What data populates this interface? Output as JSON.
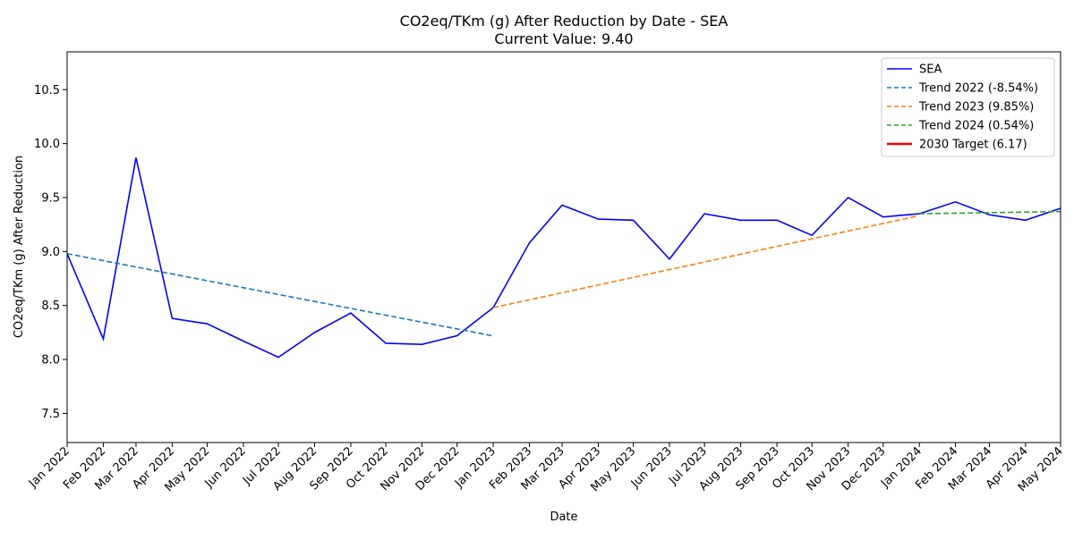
{
  "chart_data": {
    "type": "line",
    "title": "CO2eq/TKm (g) After Reduction by Date - SEA",
    "subtitle": "Current Value: 9.40",
    "xlabel": "Date",
    "ylabel": "CO2eq/TKm (g) After Reduction",
    "ylim": [
      7.23,
      10.85
    ],
    "y_ticks": [
      7.5,
      8.0,
      8.5,
      9.0,
      9.5,
      10.0,
      10.5
    ],
    "y_tick_labels": [
      "7.5",
      "8.0",
      "8.5",
      "9.0",
      "9.5",
      "10.0",
      "10.5"
    ],
    "x_ticks": [
      "2022-01-01",
      "2022-02-01",
      "2022-03-01",
      "2022-04-01",
      "2022-05-01",
      "2022-06-01",
      "2022-07-01",
      "2022-08-01",
      "2022-09-01",
      "2022-10-01",
      "2022-11-01",
      "2022-12-01",
      "2023-01-01",
      "2023-02-01",
      "2023-03-01",
      "2023-04-01",
      "2023-05-01",
      "2023-06-01",
      "2023-07-01",
      "2023-08-01",
      "2023-09-01",
      "2023-10-01",
      "2023-11-01",
      "2023-12-01",
      "2024-01-01",
      "2024-02-01",
      "2024-03-01",
      "2024-04-01",
      "2024-05-01"
    ],
    "x_tick_labels": [
      "Jan 2022",
      "Feb 2022",
      "Mar 2022",
      "Apr 2022",
      "May 2022",
      "Jun 2022",
      "Jul 2022",
      "Aug 2022",
      "Sep 2022",
      "Oct 2022",
      "Nov 2022",
      "Dec 2022",
      "Jan 2023",
      "Feb 2023",
      "Mar 2023",
      "Apr 2023",
      "May 2023",
      "Jun 2023",
      "Jul 2023",
      "Aug 2023",
      "Sep 2023",
      "Oct 2023",
      "Nov 2023",
      "Dec 2023",
      "Jan 2024",
      "Feb 2024",
      "Mar 2024",
      "Apr 2024",
      "May 2024"
    ],
    "grid": false,
    "legend_position": "top-right",
    "series": [
      {
        "name": "SEA",
        "style": "solid",
        "color": "#0000ff",
        "x": [
          "2022-01-01",
          "2022-02-01",
          "2022-03-01",
          "2022-04-01",
          "2022-05-01",
          "2022-06-01",
          "2022-07-01",
          "2022-08-01",
          "2022-09-01",
          "2022-10-01",
          "2022-11-01",
          "2022-12-01",
          "2023-01-01",
          "2023-02-01",
          "2023-03-01",
          "2023-04-01",
          "2023-05-01",
          "2023-06-01",
          "2023-07-01",
          "2023-08-01",
          "2023-09-01",
          "2023-10-01",
          "2023-11-01",
          "2023-12-01",
          "2024-01-01",
          "2024-02-01",
          "2024-03-01",
          "2024-04-01",
          "2024-05-01"
        ],
        "y": [
          8.98,
          8.19,
          9.87,
          8.38,
          8.33,
          8.17,
          8.02,
          8.25,
          8.43,
          8.15,
          8.14,
          8.22,
          8.48,
          9.08,
          9.43,
          9.3,
          9.29,
          8.93,
          9.35,
          9.29,
          9.29,
          9.15,
          9.5,
          9.32,
          9.35,
          9.46,
          9.34,
          9.29,
          9.4
        ]
      },
      {
        "name": "Trend 2022 (-8.54%)",
        "style": "dashed",
        "color": "#1f77b4",
        "x": [
          "2022-01-01",
          "2022-12-31"
        ],
        "y": [
          8.98,
          8.22
        ]
      },
      {
        "name": "Trend 2023 (9.85%)",
        "style": "dashed",
        "color": "#ff7f0e",
        "x": [
          "2023-01-01",
          "2023-12-31"
        ],
        "y": [
          8.48,
          9.33
        ]
      },
      {
        "name": "Trend 2024 (0.54%)",
        "style": "dashed",
        "color": "#2ca02c",
        "x": [
          "2024-01-01",
          "2024-05-01"
        ],
        "y": [
          9.35,
          9.37
        ]
      },
      {
        "name": "2030 Target (6.17)",
        "style": "solid-thick",
        "color": "#ff0000",
        "target_value": 6.17
      }
    ]
  }
}
